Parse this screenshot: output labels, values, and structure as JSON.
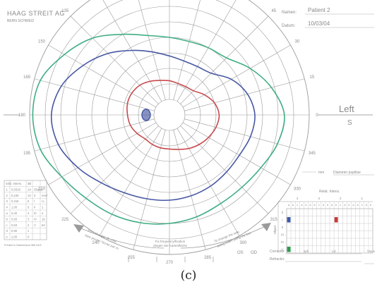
{
  "header": {
    "brand": "HAAG STREIT AG",
    "brand_sub": "BERN SCHWEIZ",
    "name_label": "Namen:",
    "name_value": "Patient 2",
    "date_label": "Datum:",
    "date_value": "10/03/04"
  },
  "perimetry": {
    "chart_type": "visual-field",
    "meridian_labels": [
      {
        "deg": 0,
        "label": "0"
      },
      {
        "deg": 15,
        "label": "15"
      },
      {
        "deg": 30,
        "label": "30"
      },
      {
        "deg": 45,
        "label": "45"
      },
      {
        "deg": 60,
        "label": "60"
      },
      {
        "deg": 75,
        "label": "75"
      },
      {
        "deg": 90,
        "label": "90"
      },
      {
        "deg": 105,
        "label": "105"
      },
      {
        "deg": 120,
        "label": "120"
      },
      {
        "deg": 135,
        "label": "135"
      },
      {
        "deg": 150,
        "label": "150"
      },
      {
        "deg": 165,
        "label": "165"
      },
      {
        "deg": 180,
        "label": "180"
      },
      {
        "deg": 195,
        "label": "195"
      },
      {
        "deg": 210,
        "label": "210"
      },
      {
        "deg": 225,
        "label": "225"
      },
      {
        "deg": 240,
        "label": "240"
      },
      {
        "deg": 255,
        "label": "255"
      },
      {
        "deg": 270,
        "label": "270"
      },
      {
        "deg": 285,
        "label": "285"
      },
      {
        "deg": 300,
        "label": "300"
      },
      {
        "deg": 315,
        "label": "315"
      },
      {
        "deg": 330,
        "label": "330"
      },
      {
        "deg": 345,
        "label": "345"
      }
    ],
    "ring_eccentricities": [
      10,
      20,
      30,
      40,
      50,
      60,
      70,
      80,
      90
    ],
    "isopters": [
      {
        "color": "#3fae82",
        "points": [
          [
            0,
            74
          ],
          [
            15,
            68
          ],
          [
            30,
            60
          ],
          [
            45,
            52
          ],
          [
            60,
            50
          ],
          [
            75,
            49
          ],
          [
            90,
            50
          ],
          [
            105,
            53
          ],
          [
            120,
            60
          ],
          [
            135,
            70
          ],
          [
            150,
            78
          ],
          [
            165,
            86
          ],
          [
            180,
            88
          ],
          [
            195,
            86
          ],
          [
            210,
            80
          ],
          [
            225,
            76
          ],
          [
            240,
            74
          ],
          [
            255,
            72
          ],
          [
            270,
            70
          ],
          [
            285,
            68
          ],
          [
            300,
            66
          ],
          [
            315,
            66
          ],
          [
            330,
            68
          ],
          [
            345,
            72
          ]
        ]
      },
      {
        "color": "#4657a3",
        "points": [
          [
            0,
            55
          ],
          [
            15,
            52
          ],
          [
            30,
            46
          ],
          [
            45,
            38
          ],
          [
            60,
            36
          ],
          [
            75,
            36
          ],
          [
            90,
            38
          ],
          [
            105,
            42
          ],
          [
            120,
            48
          ],
          [
            135,
            56
          ],
          [
            150,
            64
          ],
          [
            165,
            72
          ],
          [
            180,
            76
          ],
          [
            195,
            74
          ],
          [
            210,
            68
          ],
          [
            225,
            62
          ],
          [
            240,
            58
          ],
          [
            255,
            56
          ],
          [
            270,
            55
          ],
          [
            285,
            54
          ],
          [
            300,
            53
          ],
          [
            315,
            52
          ],
          [
            330,
            52
          ],
          [
            345,
            54
          ]
        ]
      },
      {
        "color": "#c84a4e",
        "points": [
          [
            0,
            32
          ],
          [
            15,
            30
          ],
          [
            30,
            26
          ],
          [
            45,
            22
          ],
          [
            60,
            21
          ],
          [
            75,
            21
          ],
          [
            90,
            22
          ],
          [
            105,
            23
          ],
          [
            120,
            25
          ],
          [
            135,
            27
          ],
          [
            150,
            28
          ],
          [
            165,
            28
          ],
          [
            180,
            27
          ],
          [
            195,
            26
          ],
          [
            210,
            24
          ],
          [
            225,
            22
          ],
          [
            240,
            22
          ],
          [
            255,
            22
          ],
          [
            270,
            22
          ],
          [
            285,
            23
          ],
          [
            300,
            25
          ],
          [
            315,
            27
          ],
          [
            330,
            29
          ],
          [
            345,
            31
          ]
        ]
      }
    ],
    "blind_spot": {
      "color": "#4657a3",
      "azimuth": 180,
      "eccentricity": 15
    }
  },
  "eye": {
    "side": "Left",
    "code": "S"
  },
  "pupil": {
    "unit": "mm",
    "label": "Diameter pupillae"
  },
  "stimulus_table": {
    "col_headers": [
      "Sinit. Intens.",
      "dB"
    ],
    "rows": [
      [
        "1",
        "0,0318",
        "14"
      ],
      [
        "2",
        "0,100",
        "10"
      ],
      [
        "3",
        "0,316",
        "5"
      ],
      [
        "4",
        "1,00",
        "0"
      ],
      [
        "a",
        "0,40",
        "4"
      ],
      [
        "b",
        "0,50",
        "3"
      ],
      [
        "c",
        "0,63",
        "2"
      ],
      [
        "d",
        "0,80",
        "1"
      ],
      [
        "e",
        "1,00",
        "0"
      ]
    ],
    "object_label": "Object",
    "area_rows": [
      [
        "0",
        "mm²"
      ],
      [
        "I",
        "¼"
      ],
      [
        "II",
        "1"
      ],
      [
        "III",
        "4"
      ],
      [
        "IV",
        "16"
      ],
      [
        "V",
        "64"
      ]
    ],
    "printer_note": "Printed in Switzerland 380.04/5"
  },
  "relative_intensity": {
    "title": "Relat. Intens.",
    "group_headers": [
      "4",
      "3",
      "2",
      "1"
    ],
    "sub_headers": [
      "a",
      "b",
      "c",
      "d",
      "e",
      "a",
      "b",
      "c",
      "d",
      "e",
      "a",
      "b",
      "c",
      "d",
      "e",
      "a",
      "b",
      "c",
      "d",
      "e"
    ],
    "object_label": "Object",
    "row_labels": [
      "0",
      "I",
      "II",
      "III",
      "IV",
      "V"
    ],
    "marks": [
      {
        "row": 1,
        "col": 0,
        "color": "#3b5aa6"
      },
      {
        "row": 1,
        "col": 11,
        "color": "#c63a3a"
      },
      {
        "row": 5,
        "col": 0,
        "color": "#2e9a4a"
      }
    ]
  },
  "footer": {
    "os": "OS",
    "od": "OD",
    "fix_line1": "Fix frequency/fixation",
    "fix_line2": "Zeigen Sie Kartenfläche",
    "arrow_left_text1": "Pour changer de côté,",
    "arrow_left_text2": "faire pivoter l'écran par ici",
    "arrow_right_text1": "To change the side,",
    "arrow_right_text2": "swing index along the line",
    "correction_label": "Correctio:",
    "sph_label": "sph",
    "cyl_label": "cyl",
    "visus_label": "Visus",
    "refractio_label": "Refractio:"
  },
  "caption": "(c)"
}
